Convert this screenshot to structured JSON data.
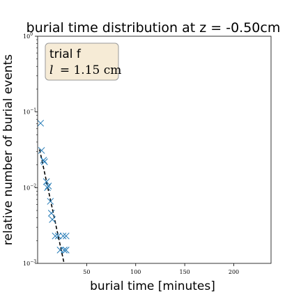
{
  "chart_data": {
    "type": "scatter",
    "title": "burial time distribution at z = -0.50cm",
    "xlabel": "burial time [minutes]",
    "ylabel": "relative number of burial events",
    "xlim": [
      0,
      238
    ],
    "ylim": [
      0.001,
      1
    ],
    "yscale": "log",
    "grid": false,
    "legend_placement": "top-left",
    "legend": {
      "line1": "trial f",
      "line2_symbol": "l",
      "line2_rest": "= 1.15 cm"
    },
    "x_ticks": [
      {
        "value": 50,
        "label": "50"
      },
      {
        "value": 100,
        "label": "100"
      },
      {
        "value": 150,
        "label": "150"
      },
      {
        "value": 200,
        "label": "200"
      }
    ],
    "y_ticks": [
      {
        "value": 1,
        "base": "10",
        "exp": "0"
      },
      {
        "value": 0.1,
        "base": "10",
        "exp": "−1"
      },
      {
        "value": 0.01,
        "base": "10",
        "exp": "−2"
      },
      {
        "value": 0.001,
        "base": "10",
        "exp": "−3"
      }
    ],
    "series": [
      {
        "marker": "x",
        "color": "#1f77b4",
        "points": [
          {
            "x": 3,
            "y": 0.071
          },
          {
            "x": 4,
            "y": 0.031
          },
          {
            "x": 6,
            "y": 0.023
          },
          {
            "x": 7,
            "y": 0.022
          },
          {
            "x": 9,
            "y": 0.012
          },
          {
            "x": 10,
            "y": 0.01
          },
          {
            "x": 11,
            "y": 0.0105
          },
          {
            "x": 13,
            "y": 0.0066
          },
          {
            "x": 14,
            "y": 0.0046
          },
          {
            "x": 15,
            "y": 0.0038
          },
          {
            "x": 18,
            "y": 0.0023
          },
          {
            "x": 21,
            "y": 0.0023
          },
          {
            "x": 23,
            "y": 0.0015
          },
          {
            "x": 26,
            "y": 0.0023
          },
          {
            "x": 27,
            "y": 0.0015
          },
          {
            "x": 29,
            "y": 0.0023
          },
          {
            "x": 29,
            "y": 0.0015
          }
        ]
      },
      {
        "kind": "fit",
        "style": "dashed",
        "color": "#000000",
        "points": [
          {
            "x": 2,
            "y": 0.032
          },
          {
            "x": 27,
            "y": 0.001
          }
        ]
      }
    ]
  }
}
